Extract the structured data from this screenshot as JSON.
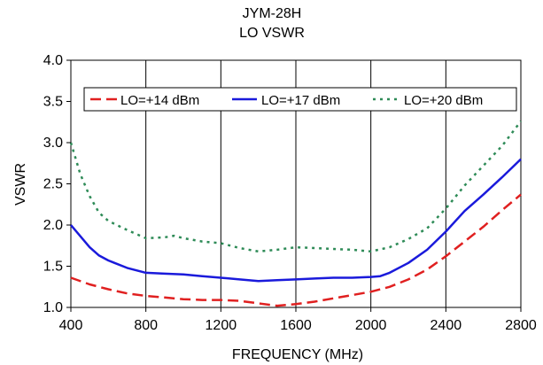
{
  "chart_data": {
    "type": "line",
    "title": "JYM-28H",
    "subtitle": "LO VSWR",
    "xlabel": "FREQUENCY (MHz)",
    "ylabel": "VSWR",
    "xlim": [
      400,
      2800
    ],
    "ylim": [
      1.0,
      4.0
    ],
    "x_ticks": [
      400,
      800,
      1200,
      1600,
      2000,
      2400,
      2800
    ],
    "x_tick_labels": [
      "400",
      "800",
      "1200",
      "1600",
      "2000",
      "2400",
      "2800"
    ],
    "y_ticks": [
      1.0,
      1.5,
      2.0,
      2.5,
      3.0,
      3.5,
      4.0
    ],
    "y_tick_labels": [
      "1.0",
      "1.5",
      "2.0",
      "2.5",
      "3.0",
      "3.5",
      "4.0"
    ],
    "grid": "vertical",
    "legend_position": "top",
    "series": [
      {
        "name": "LO=+14 dBm",
        "color": "#e02020",
        "style": "dashed",
        "x": [
          400,
          500,
          600,
          700,
          800,
          900,
          1000,
          1100,
          1200,
          1300,
          1400,
          1500,
          1600,
          1700,
          1800,
          1900,
          2000,
          2100,
          2200,
          2300,
          2400,
          2500,
          2600,
          2700,
          2800
        ],
        "y": [
          1.36,
          1.28,
          1.22,
          1.17,
          1.14,
          1.12,
          1.1,
          1.09,
          1.09,
          1.08,
          1.05,
          1.02,
          1.04,
          1.07,
          1.11,
          1.15,
          1.19,
          1.25,
          1.34,
          1.46,
          1.62,
          1.8,
          1.98,
          2.18,
          2.37
        ]
      },
      {
        "name": "LO=+17 dBm",
        "color": "#1a1adb",
        "style": "solid",
        "x": [
          400,
          500,
          550,
          600,
          700,
          800,
          900,
          1000,
          1100,
          1200,
          1300,
          1400,
          1500,
          1600,
          1700,
          1800,
          1900,
          2000,
          2050,
          2100,
          2200,
          2300,
          2400,
          2500,
          2600,
          2700,
          2800
        ],
        "y": [
          2.0,
          1.73,
          1.63,
          1.57,
          1.48,
          1.42,
          1.41,
          1.4,
          1.38,
          1.36,
          1.34,
          1.32,
          1.33,
          1.34,
          1.35,
          1.36,
          1.36,
          1.37,
          1.38,
          1.42,
          1.54,
          1.7,
          1.92,
          2.17,
          2.37,
          2.58,
          2.8
        ]
      },
      {
        "name": "LO=+20 dBm",
        "color": "#2e8b57",
        "style": "dotted",
        "x": [
          400,
          450,
          500,
          550,
          600,
          700,
          800,
          900,
          950,
          1000,
          1100,
          1200,
          1300,
          1400,
          1500,
          1600,
          1700,
          1800,
          1900,
          2000,
          2100,
          2200,
          2300,
          2400,
          2500,
          2600,
          2700,
          2800
        ],
        "y": [
          3.0,
          2.62,
          2.35,
          2.15,
          2.05,
          1.94,
          1.84,
          1.85,
          1.87,
          1.84,
          1.8,
          1.78,
          1.72,
          1.68,
          1.7,
          1.73,
          1.72,
          1.71,
          1.7,
          1.68,
          1.73,
          1.83,
          1.96,
          2.2,
          2.48,
          2.72,
          2.96,
          3.26
        ]
      }
    ]
  }
}
